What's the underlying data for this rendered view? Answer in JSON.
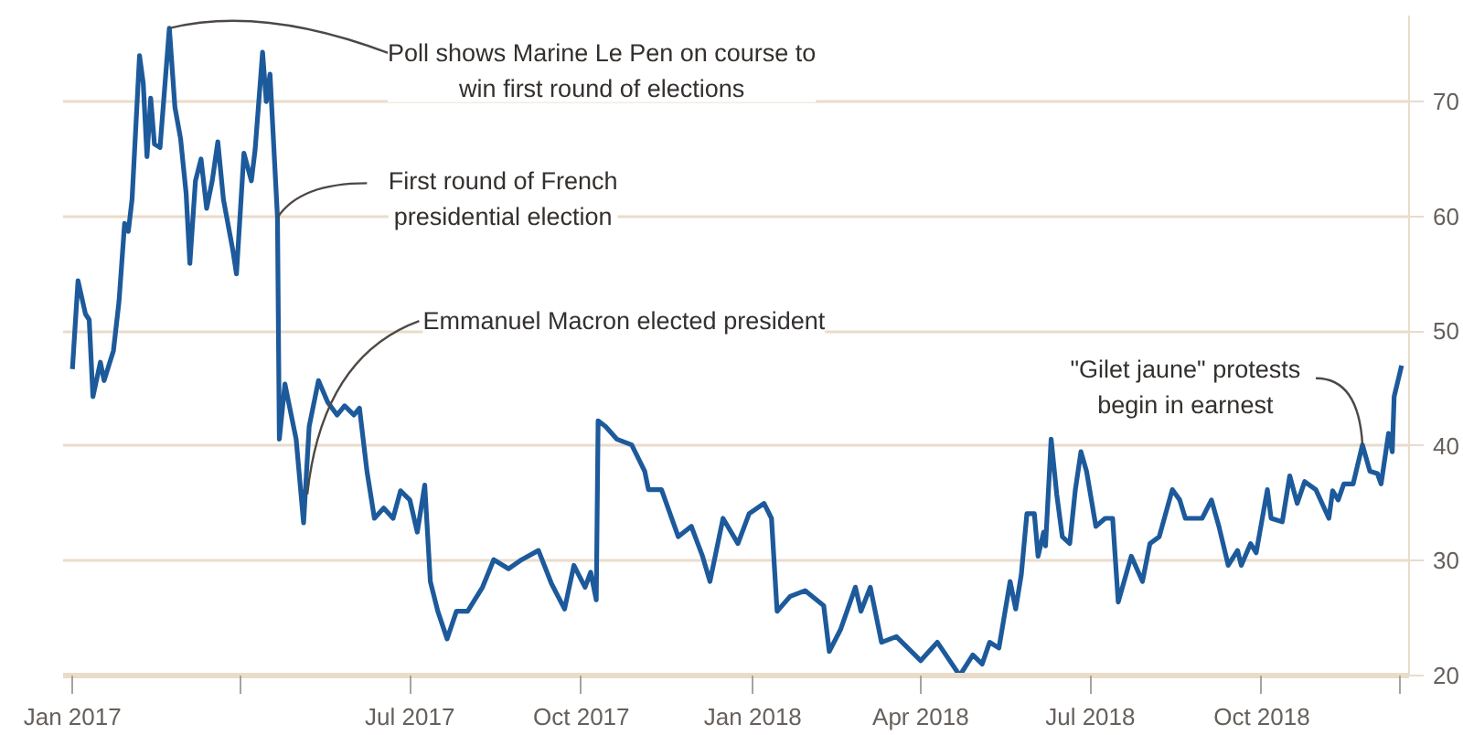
{
  "chart_data": {
    "type": "line",
    "x": [
      "2017-01-01",
      "2017-01-04",
      "2017-01-08",
      "2017-01-10",
      "2017-01-12",
      "2017-01-16",
      "2017-01-18",
      "2017-01-23",
      "2017-01-26",
      "2017-01-29",
      "2017-01-31",
      "2017-02-02",
      "2017-02-06",
      "2017-02-08",
      "2017-02-10",
      "2017-02-12",
      "2017-02-14",
      "2017-02-17",
      "2017-02-22",
      "2017-02-25",
      "2017-02-28",
      "2017-03-03",
      "2017-03-05",
      "2017-03-08",
      "2017-03-11",
      "2017-03-14",
      "2017-03-17",
      "2017-03-20",
      "2017-03-23",
      "2017-03-28",
      "2017-03-30",
      "2017-04-03",
      "2017-04-07",
      "2017-04-09",
      "2017-04-13",
      "2017-04-15",
      "2017-04-17",
      "2017-04-21",
      "2017-04-22",
      "2017-04-25",
      "2017-04-27",
      "2017-05-01",
      "2017-05-05",
      "2017-05-08",
      "2017-05-13",
      "2017-05-18",
      "2017-05-23",
      "2017-05-27",
      "2017-06-01",
      "2017-06-04",
      "2017-06-08",
      "2017-06-12",
      "2017-06-17",
      "2017-06-22",
      "2017-06-26",
      "2017-07-01",
      "2017-07-05",
      "2017-07-09",
      "2017-07-12",
      "2017-07-16",
      "2017-07-21",
      "2017-07-26",
      "2017-08-01",
      "2017-08-09",
      "2017-08-15",
      "2017-08-23",
      "2017-08-30",
      "2017-09-08",
      "2017-09-15",
      "2017-09-22",
      "2017-09-27",
      "2017-10-03",
      "2017-10-06",
      "2017-10-09",
      "2017-10-10",
      "2017-10-14",
      "2017-10-20",
      "2017-10-28",
      "2017-11-04",
      "2017-11-06",
      "2017-11-13",
      "2017-11-22",
      "2017-11-29",
      "2017-12-05",
      "2017-12-09",
      "2017-12-16",
      "2017-12-24",
      "2017-12-30",
      "2018-01-07",
      "2018-01-11",
      "2018-01-14",
      "2018-01-21",
      "2018-01-29",
      "2018-02-08",
      "2018-02-11",
      "2018-02-17",
      "2018-02-25",
      "2018-02-28",
      "2018-03-05",
      "2018-03-11",
      "2018-03-19",
      "2018-04-01",
      "2018-04-10",
      "2018-04-22",
      "2018-04-29",
      "2018-05-04",
      "2018-05-08",
      "2018-05-13",
      "2018-05-19",
      "2018-05-22",
      "2018-05-25",
      "2018-05-28",
      "2018-06-01",
      "2018-06-03",
      "2018-06-06",
      "2018-06-07",
      "2018-06-10",
      "2018-06-13",
      "2018-06-16",
      "2018-06-20",
      "2018-06-23",
      "2018-06-26",
      "2018-06-29",
      "2018-07-04",
      "2018-07-09",
      "2018-07-13",
      "2018-07-16",
      "2018-07-23",
      "2018-07-29",
      "2018-08-02",
      "2018-08-07",
      "2018-08-14",
      "2018-08-18",
      "2018-08-21",
      "2018-08-30",
      "2018-09-04",
      "2018-09-08",
      "2018-09-13",
      "2018-09-18",
      "2018-09-20",
      "2018-09-25",
      "2018-09-28",
      "2018-10-04",
      "2018-10-06",
      "2018-10-12",
      "2018-10-16",
      "2018-10-20",
      "2018-10-24",
      "2018-10-30",
      "2018-11-06",
      "2018-11-08",
      "2018-11-11",
      "2018-11-14",
      "2018-11-19",
      "2018-11-24",
      "2018-11-28",
      "2018-12-02",
      "2018-12-04",
      "2018-12-08",
      "2018-12-10",
      "2018-12-11",
      "2018-12-15"
    ],
    "series": [
      {
        "color": "#1d5a9b",
        "values": [
          46.7,
          54.4,
          51.5,
          51.0,
          44.3,
          47.3,
          45.7,
          48.3,
          52.6,
          59.4,
          58.7,
          61.5,
          74.0,
          71.6,
          65.2,
          70.3,
          66.3,
          66.0,
          76.4,
          69.5,
          66.8,
          62.0,
          55.9,
          63.1,
          65.0,
          60.7,
          63.1,
          66.5,
          61.5,
          57.1,
          55.0,
          65.5,
          63.1,
          65.8,
          74.3,
          70.0,
          72.4,
          59.9,
          40.6,
          45.4,
          43.8,
          40.6,
          33.3,
          41.7,
          45.7,
          43.8,
          42.7,
          43.5,
          42.7,
          43.3,
          37.8,
          33.7,
          34.6,
          33.7,
          36.1,
          35.3,
          32.5,
          36.6,
          28.2,
          25.6,
          23.2,
          25.6,
          25.6,
          27.7,
          30.1,
          29.3,
          30.1,
          30.9,
          28.0,
          25.8,
          29.6,
          27.7,
          29.0,
          26.6,
          42.2,
          41.7,
          40.6,
          40.1,
          37.8,
          36.2,
          36.2,
          32.1,
          33.0,
          30.4,
          28.2,
          33.7,
          31.5,
          34.1,
          35.0,
          33.7,
          25.6,
          26.9,
          27.4,
          26.1,
          22.1,
          24.0,
          27.7,
          25.6,
          27.7,
          22.9,
          23.4,
          21.3,
          22.9,
          20.0,
          21.8,
          21.0,
          22.9,
          22.4,
          28.2,
          25.8,
          28.8,
          34.1,
          34.1,
          30.4,
          32.5,
          31.3,
          40.6,
          35.8,
          32.1,
          31.5,
          36.2,
          39.5,
          37.8,
          33.0,
          33.7,
          33.7,
          26.4,
          30.4,
          28.2,
          31.5,
          32.1,
          36.2,
          35.3,
          33.7,
          33.7,
          35.3,
          33.0,
          29.6,
          30.9,
          29.6,
          31.5,
          30.7,
          36.2,
          33.7,
          33.4,
          37.4,
          35.0,
          36.9,
          36.2,
          33.7,
          36.1,
          35.3,
          36.7,
          36.7,
          40.1,
          37.8,
          37.6,
          36.7,
          41.1,
          39.5,
          44.3,
          47.0
        ]
      }
    ],
    "xlim": [
      "2016-12-27",
      "2018-12-19"
    ],
    "xticks": [
      {
        "value": "2017-01-01",
        "label": "Jan 2017"
      },
      {
        "value": "2017-04-01",
        "label": null
      },
      {
        "value": "2017-07-01",
        "label": "Jul 2017"
      },
      {
        "value": "2017-10-01",
        "label": "Oct 2017"
      },
      {
        "value": "2018-01-01",
        "label": "Jan 2018"
      },
      {
        "value": "2018-04-01",
        "label": "Apr 2018"
      },
      {
        "value": "2018-07-01",
        "label": "Jul 2018"
      },
      {
        "value": "2018-10-01",
        "label": "Oct 2018"
      },
      {
        "value": "2018-12-14",
        "label": null
      }
    ],
    "ylim": [
      20,
      77.5
    ],
    "yticks": [
      20,
      30,
      40,
      50,
      60,
      70
    ],
    "grid": "y",
    "line_style": "solid",
    "annotations": [
      {
        "text": "Poll shows Marine Le Pen on course to\nwin first round of elections",
        "x": "2017-02-22",
        "y": 76.4
      },
      {
        "text": "First round of French\npresidential election",
        "x": "2017-04-21",
        "y": 59.9
      },
      {
        "text": "Emmanuel Macron elected president",
        "x": "2017-05-07",
        "y": 35.8
      },
      {
        "text": "\"Gilet jaune\" protests\nbegin in earnest",
        "x": "2018-11-24",
        "y": 40.1
      }
    ]
  }
}
